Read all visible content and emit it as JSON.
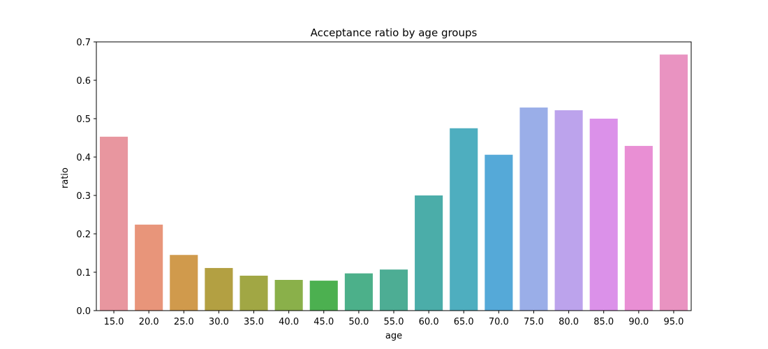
{
  "chart_data": {
    "type": "bar",
    "title": "Acceptance ratio by age groups",
    "xlabel": "age",
    "ylabel": "ratio",
    "ylim": [
      0,
      0.7
    ],
    "yticks": [
      "0.0",
      "0.1",
      "0.2",
      "0.3",
      "0.4",
      "0.5",
      "0.6",
      "0.7"
    ],
    "grid": false,
    "legend": "none",
    "categories": [
      "15.0",
      "20.0",
      "25.0",
      "30.0",
      "35.0",
      "40.0",
      "45.0",
      "50.0",
      "55.0",
      "60.0",
      "65.0",
      "70.0",
      "75.0",
      "80.0",
      "85.0",
      "90.0",
      "95.0"
    ],
    "values": [
      0.453,
      0.224,
      0.145,
      0.111,
      0.091,
      0.08,
      0.078,
      0.097,
      0.107,
      0.3,
      0.475,
      0.406,
      0.529,
      0.522,
      0.5,
      0.429,
      0.667
    ],
    "colors": [
      "#e8969f",
      "#e8957a",
      "#d09a4c",
      "#b3a042",
      "#a1a744",
      "#8ab04a",
      "#4cb050",
      "#4cb08a",
      "#4dad94",
      "#4bada9",
      "#4eaebf",
      "#55a9d8",
      "#9aaee8",
      "#bca3ec",
      "#db91e9",
      "#e98fd4",
      "#e993c1"
    ]
  }
}
